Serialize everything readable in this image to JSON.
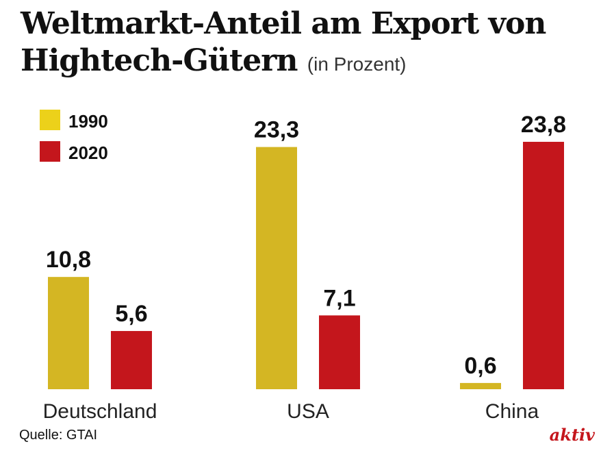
{
  "chart_data": {
    "type": "bar",
    "title": "Weltmarkt-Anteil am Export von Hightech-Gütern",
    "subtitle": "(in Prozent)",
    "categories": [
      "Deutschland",
      "USA",
      "China"
    ],
    "series": [
      {
        "name": "1990",
        "values": [
          10.8,
          23.3,
          0.6
        ],
        "labels": [
          "10,8",
          "23,3",
          "0,6"
        ],
        "color": "#d4b623"
      },
      {
        "name": "2020",
        "values": [
          5.6,
          7.1,
          23.8
        ],
        "labels": [
          "5,6",
          "7,1",
          "23,8"
        ],
        "color": "#c4161c"
      }
    ],
    "legend_colors": [
      "#ecd11a",
      "#c4161c"
    ],
    "legend_position": "top-left",
    "xlabel": "",
    "ylabel": "",
    "ylim": [
      0,
      25
    ],
    "grid": false
  },
  "footer": {
    "source": "Quelle: GTAI",
    "brand": "aktiv"
  }
}
